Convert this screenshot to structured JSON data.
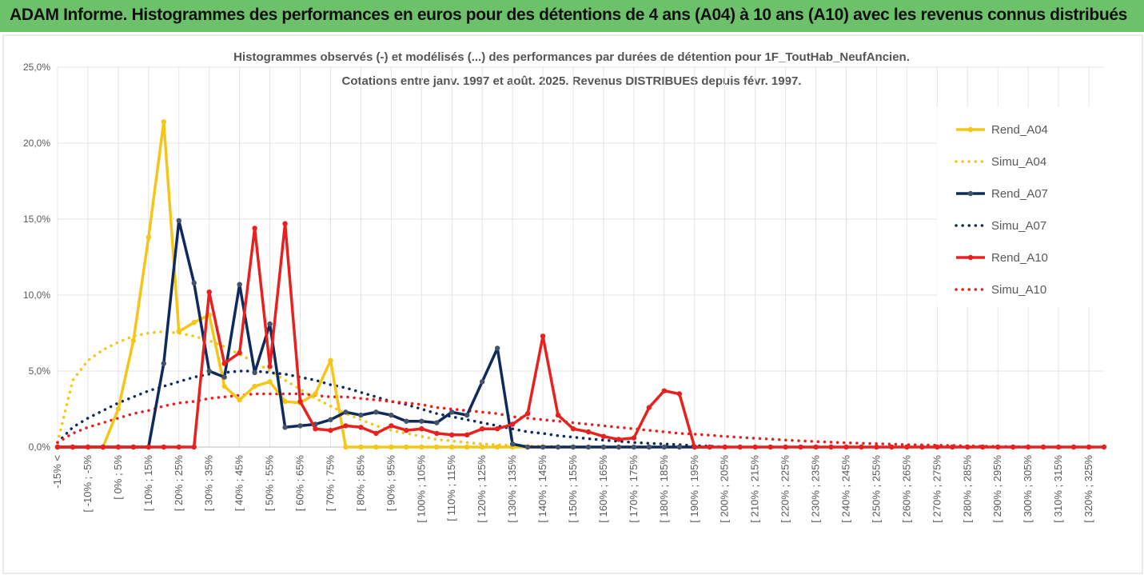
{
  "banner": {
    "title": "ADAM Informe. Histogrammes des performances en euros pour des détentions de 4 ans (A04) à 10 ans (A10) avec les revenus connus distribués"
  },
  "chart_data": {
    "type": "line",
    "title_line1": "Histogrammes observés (-) et modélisés (...) des performances par durées de détention pour 1F_ToutHab_NeufAncien.",
    "title_line2": "Cotations entre janv. 1997 et août. 2025. Revenus DISTRIBUES depuis févr. 1997.",
    "y_ticks": [
      "0,0%",
      "5,0%",
      "10,0%",
      "15,0%",
      "20,0%",
      "25,0%"
    ],
    "ylim": [
      0,
      25
    ],
    "x_labels": [
      "-15% <",
      "[ -10% ; -5%",
      "[ 0% ; 5%",
      "[ 10% ; 15%",
      "[ 20% ; 25%",
      "[ 30% ; 35%",
      "[ 40% ; 45%",
      "[ 50% ; 55%",
      "[ 60% ; 65%",
      "[ 70% ; 75%",
      "[ 80% ; 85%",
      "[ 90% ; 95%",
      "[ 100% ; 105%",
      "[ 110% ; 115%",
      "[ 120% ; 125%",
      "[ 130% ; 135%",
      "[ 140% ; 145%",
      "[ 150% ; 155%",
      "[ 160% ; 165%",
      "[ 170% ; 175%",
      "[ 180% ; 185%",
      "[ 190% ; 195%",
      "[ 200% ; 205%",
      "[ 210% ; 215%",
      "[ 220% ; 225%",
      "[ 230% ; 235%",
      "[ 240% ; 245%",
      "[ 250% ; 255%",
      "[ 260% ; 265%",
      "[ 270% ; 275%",
      "[ 280% ; 285%",
      "[ 290% ; 295%",
      "[ 300% ; 305%",
      "[ 310% ; 315%",
      "[ 320% ; 325%"
    ],
    "n_categories": 70,
    "grid": true,
    "legend_position": "right",
    "series": [
      {
        "name": "Rend_A04",
        "style": "solid",
        "color": "#f5c518",
        "values": [
          0,
          0,
          0,
          0,
          2.5,
          7.0,
          13.8,
          21.4,
          7.6,
          8.2,
          8.7,
          4.0,
          3.1,
          4.0,
          4.3,
          3.0,
          2.9,
          3.5,
          5.7,
          0,
          0,
          0,
          0,
          0,
          0,
          0,
          0,
          0,
          0,
          0,
          0,
          0,
          0,
          0
        ]
      },
      {
        "name": "Simu_A04",
        "style": "dotted",
        "color": "#f5c518",
        "values": [
          0.3,
          4.4,
          5.7,
          6.4,
          6.9,
          7.3,
          7.5,
          7.6,
          7.5,
          7.3,
          7.0,
          6.6,
          6.1,
          5.6,
          5.0,
          4.4,
          3.8,
          3.2,
          2.7,
          2.2,
          1.8,
          1.4,
          1.1,
          0.9,
          0.7,
          0.5,
          0.4,
          0.3,
          0.2,
          0.15,
          0.1,
          0.08,
          0.06,
          0.04,
          0.02,
          0
        ]
      },
      {
        "name": "Rend_A07",
        "style": "solid",
        "color": "#0f2a5c",
        "values": [
          0,
          0,
          0,
          0,
          0,
          0,
          0,
          5.5,
          14.9,
          10.8,
          5.0,
          4.6,
          10.7,
          4.9,
          8.1,
          1.3,
          1.4,
          1.5,
          1.8,
          2.3,
          2.1,
          2.3,
          2.1,
          1.7,
          1.7,
          1.6,
          2.3,
          2.1,
          4.3,
          6.5,
          0.2,
          0,
          0,
          0,
          0,
          0,
          0,
          0,
          0,
          0,
          0,
          0,
          0,
          0
        ]
      },
      {
        "name": "Simu_A07",
        "style": "dotted",
        "color": "#0f2a5c",
        "values": [
          0.3,
          1.3,
          1.9,
          2.4,
          2.9,
          3.3,
          3.7,
          4.0,
          4.3,
          4.6,
          4.8,
          4.9,
          5.0,
          5.0,
          4.9,
          4.8,
          4.6,
          4.4,
          4.1,
          3.9,
          3.6,
          3.3,
          3.0,
          2.8,
          2.5,
          2.2,
          2.0,
          1.8,
          1.6,
          1.4,
          1.2,
          1.0,
          0.9,
          0.75,
          0.65,
          0.55,
          0.45,
          0.38,
          0.3,
          0.25,
          0.2,
          0.15,
          0.1,
          0.05,
          0
        ]
      },
      {
        "name": "Rend_A10",
        "style": "solid",
        "color": "#e8211f",
        "values": [
          0,
          0,
          0,
          0,
          0,
          0,
          0,
          0,
          0,
          0,
          10.2,
          5.5,
          6.2,
          14.4,
          5.3,
          14.7,
          3.0,
          1.2,
          1.1,
          1.4,
          1.3,
          0.9,
          1.4,
          1.1,
          1.2,
          0.9,
          0.8,
          0.8,
          1.2,
          1.2,
          1.5,
          2.2,
          7.3,
          2.1,
          1.2,
          1.0,
          0.7,
          0.5,
          0.6,
          2.6,
          3.7,
          3.5,
          0,
          0,
          0,
          0,
          0,
          0,
          0,
          0,
          0,
          0,
          0,
          0,
          0,
          0,
          0,
          0,
          0,
          0,
          0,
          0,
          0,
          0,
          0,
          0,
          0,
          0,
          0,
          0
        ]
      },
      {
        "name": "Simu_A10",
        "style": "dotted",
        "color": "#e8211f",
        "values": [
          0.3,
          0.9,
          1.3,
          1.6,
          1.9,
          2.2,
          2.4,
          2.7,
          2.9,
          3.0,
          3.2,
          3.3,
          3.4,
          3.5,
          3.5,
          3.5,
          3.5,
          3.4,
          3.3,
          3.3,
          3.2,
          3.1,
          3.0,
          2.9,
          2.8,
          2.6,
          2.5,
          2.4,
          2.3,
          2.2,
          2.0,
          1.9,
          1.8,
          1.7,
          1.6,
          1.5,
          1.4,
          1.3,
          1.2,
          1.1,
          1.0,
          0.9,
          0.85,
          0.78,
          0.7,
          0.64,
          0.58,
          0.52,
          0.46,
          0.41,
          0.36,
          0.32,
          0.28,
          0.25,
          0.22,
          0.19,
          0.16,
          0.14,
          0.12,
          0.1,
          0.08,
          0.06,
          0.04,
          0.02,
          0
        ]
      }
    ]
  }
}
